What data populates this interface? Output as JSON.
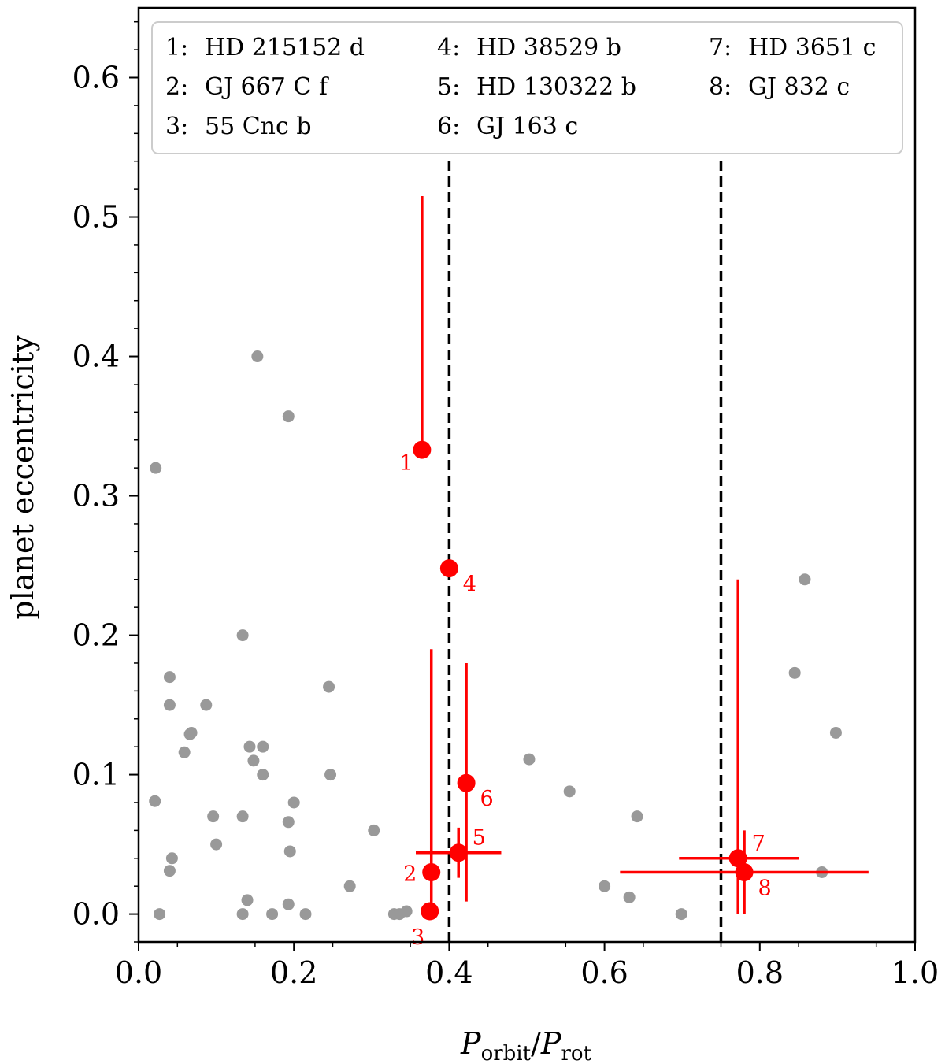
{
  "chart_data": {
    "type": "scatter",
    "xlabel": "P_orbit/P_rot",
    "xlabel_parts": {
      "p1": "P",
      "sub1": "orbit",
      "slash": "/",
      "p2": "P",
      "sub2": "rot"
    },
    "ylabel": "planet eccentricity",
    "xlim": [
      0.0,
      1.0
    ],
    "ylim": [
      -0.02,
      0.65
    ],
    "xticks": [
      "0.0",
      "0.2",
      "0.4",
      "0.6",
      "0.8",
      "1.0"
    ],
    "yticks": [
      "0.0",
      "0.1",
      "0.2",
      "0.3",
      "0.4",
      "0.5",
      "0.6"
    ],
    "vlines": [
      0.4,
      0.75
    ],
    "legend": {
      "placement": "top",
      "entries": [
        {
          "num": "1:",
          "name": "HD 215152 d"
        },
        {
          "num": "2:",
          "name": "GJ 667 C f"
        },
        {
          "num": "3:",
          "name": "55 Cnc b"
        },
        {
          "num": "4:",
          "name": "HD 38529 b"
        },
        {
          "num": "5:",
          "name": "HD 130322 b"
        },
        {
          "num": "6:",
          "name": "GJ 163 c"
        },
        {
          "num": "7:",
          "name": "HD 3651 c"
        },
        {
          "num": "8:",
          "name": "GJ 832 c"
        }
      ]
    },
    "background_color": "#999999",
    "highlight_color": "#ff0000",
    "background_points": [
      {
        "x": 0.022,
        "y": 0.32
      },
      {
        "x": 0.021,
        "y": 0.081
      },
      {
        "x": 0.027,
        "y": 0.0
      },
      {
        "x": 0.04,
        "y": 0.17
      },
      {
        "x": 0.04,
        "y": 0.15
      },
      {
        "x": 0.04,
        "y": 0.031
      },
      {
        "x": 0.043,
        "y": 0.04
      },
      {
        "x": 0.059,
        "y": 0.116
      },
      {
        "x": 0.066,
        "y": 0.129
      },
      {
        "x": 0.068,
        "y": 0.13
      },
      {
        "x": 0.087,
        "y": 0.15
      },
      {
        "x": 0.096,
        "y": 0.07
      },
      {
        "x": 0.1,
        "y": 0.05
      },
      {
        "x": 0.134,
        "y": 0.2
      },
      {
        "x": 0.134,
        "y": 0.07
      },
      {
        "x": 0.134,
        "y": 0.0
      },
      {
        "x": 0.14,
        "y": 0.01
      },
      {
        "x": 0.143,
        "y": 0.12
      },
      {
        "x": 0.148,
        "y": 0.11
      },
      {
        "x": 0.153,
        "y": 0.4
      },
      {
        "x": 0.16,
        "y": 0.12
      },
      {
        "x": 0.16,
        "y": 0.1
      },
      {
        "x": 0.172,
        "y": 0.0
      },
      {
        "x": 0.193,
        "y": 0.357
      },
      {
        "x": 0.193,
        "y": 0.066
      },
      {
        "x": 0.195,
        "y": 0.045
      },
      {
        "x": 0.193,
        "y": 0.007
      },
      {
        "x": 0.2,
        "y": 0.08
      },
      {
        "x": 0.215,
        "y": 0.0
      },
      {
        "x": 0.245,
        "y": 0.163
      },
      {
        "x": 0.247,
        "y": 0.1
      },
      {
        "x": 0.272,
        "y": 0.02
      },
      {
        "x": 0.303,
        "y": 0.06
      },
      {
        "x": 0.329,
        "y": 0.0
      },
      {
        "x": 0.336,
        "y": 0.0
      },
      {
        "x": 0.345,
        "y": 0.002
      },
      {
        "x": 0.503,
        "y": 0.111
      },
      {
        "x": 0.555,
        "y": 0.088
      },
      {
        "x": 0.6,
        "y": 0.02
      },
      {
        "x": 0.632,
        "y": 0.012
      },
      {
        "x": 0.642,
        "y": 0.07
      },
      {
        "x": 0.699,
        "y": 0.0
      },
      {
        "x": 0.845,
        "y": 0.173
      },
      {
        "x": 0.858,
        "y": 0.24
      },
      {
        "x": 0.88,
        "y": 0.03
      },
      {
        "x": 0.898,
        "y": 0.13
      }
    ],
    "highlight_points": [
      {
        "label": "1",
        "x": 0.365,
        "y": 0.333,
        "yerr": [
          0.333,
          0.515
        ],
        "xerr": null,
        "label_pos": "lower-left"
      },
      {
        "label": "2",
        "x": 0.377,
        "y": 0.03,
        "yerr": [
          0.0,
          0.19
        ],
        "xerr": null,
        "label_pos": "left"
      },
      {
        "label": "3",
        "x": 0.375,
        "y": 0.002,
        "yerr": null,
        "xerr": null,
        "label_pos": "below-left"
      },
      {
        "label": "4",
        "x": 0.4,
        "y": 0.248,
        "yerr": null,
        "xerr": null,
        "label_pos": "lower-right"
      },
      {
        "label": "5",
        "x": 0.412,
        "y": 0.044,
        "yerr": [
          0.026,
          0.062
        ],
        "xerr": [
          0.357,
          0.467
        ],
        "label_pos": "upper-right"
      },
      {
        "label": "6",
        "x": 0.422,
        "y": 0.094,
        "yerr": [
          0.009,
          0.18
        ],
        "xerr": null,
        "label_pos": "lower-right"
      },
      {
        "label": "7",
        "x": 0.772,
        "y": 0.04,
        "yerr": [
          0.0,
          0.24
        ],
        "xerr": [
          0.696,
          0.85
        ],
        "label_pos": "upper-right"
      },
      {
        "label": "8",
        "x": 0.78,
        "y": 0.03,
        "yerr": [
          0.0,
          0.06
        ],
        "xerr": [
          0.62,
          0.94
        ],
        "label_pos": "lower-right"
      }
    ]
  }
}
